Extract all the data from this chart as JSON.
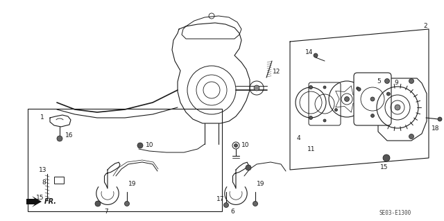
{
  "bg_color": "#ffffff",
  "line_color": "#1a1a1a",
  "diagram_code": "SE03-E1300",
  "figsize": [
    6.4,
    3.19
  ],
  "dpi": 100
}
